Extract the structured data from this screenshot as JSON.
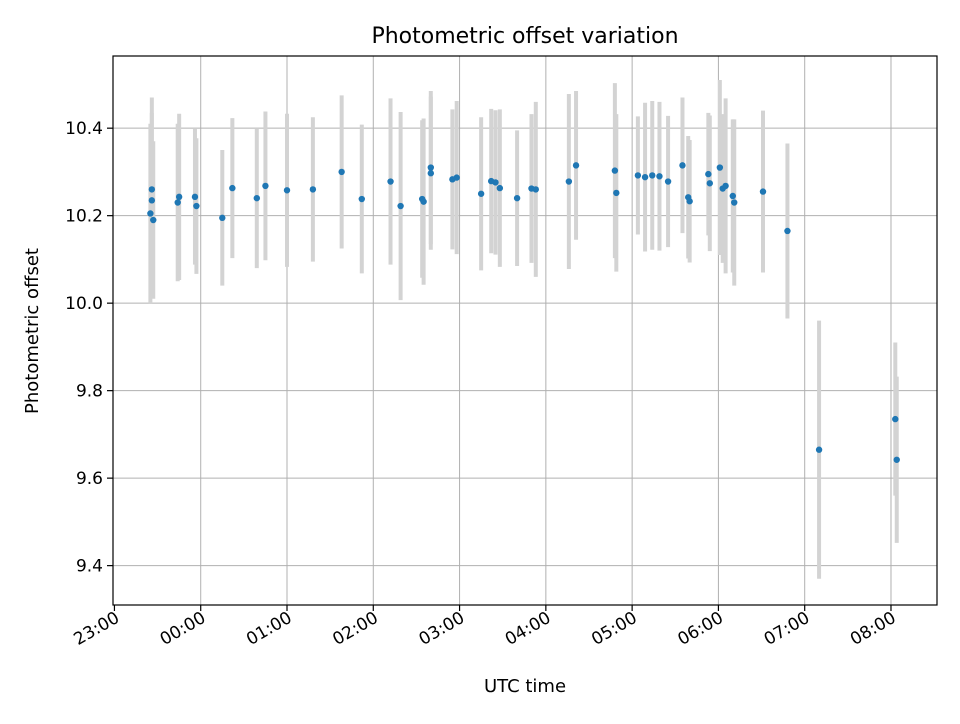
{
  "chart_data": {
    "type": "scatter",
    "title": "Photometric offset variation",
    "xlabel": "UTC time",
    "ylabel": "Photometric offset",
    "x_ticks": [
      "23:00",
      "00:00",
      "01:00",
      "02:00",
      "03:00",
      "04:00",
      "05:00",
      "06:00",
      "07:00",
      "08:00"
    ],
    "y_ticks": [
      "9.4",
      "9.6",
      "9.8",
      "10.0",
      "10.2",
      "10.4"
    ],
    "xlim": [
      "22:59",
      "08:32"
    ],
    "ylim": [
      9.31,
      10.565
    ],
    "grid": true,
    "colors": {
      "point": "#1f77b4",
      "errorbar": "#d3d3d3",
      "grid": "#b0b0b0"
    },
    "points": [
      {
        "t": "23:25",
        "y": 10.205,
        "err": 0.205
      },
      {
        "t": "23:26",
        "y": 10.26,
        "err": 0.21
      },
      {
        "t": "23:26",
        "y": 10.235,
        "err": 0.2
      },
      {
        "t": "23:27",
        "y": 10.19,
        "err": 0.18
      },
      {
        "t": "23:44",
        "y": 10.23,
        "err": 0.18
      },
      {
        "t": "23:45",
        "y": 10.243,
        "err": 0.19
      },
      {
        "t": "23:56",
        "y": 10.243,
        "err": 0.155
      },
      {
        "t": "23:57",
        "y": 10.222,
        "err": 0.155
      },
      {
        "t": "00:15",
        "y": 10.195,
        "err": 0.155
      },
      {
        "t": "00:22",
        "y": 10.263,
        "err": 0.16
      },
      {
        "t": "00:39",
        "y": 10.24,
        "err": 0.16
      },
      {
        "t": "00:45",
        "y": 10.268,
        "err": 0.17
      },
      {
        "t": "01:00",
        "y": 10.258,
        "err": 0.175
      },
      {
        "t": "01:18",
        "y": 10.26,
        "err": 0.165
      },
      {
        "t": "01:38",
        "y": 10.3,
        "err": 0.175
      },
      {
        "t": "01:52",
        "y": 10.238,
        "err": 0.17
      },
      {
        "t": "02:12",
        "y": 10.278,
        "err": 0.19
      },
      {
        "t": "02:19",
        "y": 10.222,
        "err": 0.215
      },
      {
        "t": "02:34",
        "y": 10.238,
        "err": 0.18
      },
      {
        "t": "02:35",
        "y": 10.232,
        "err": 0.19
      },
      {
        "t": "02:40",
        "y": 10.31,
        "err": 0.175
      },
      {
        "t": "02:40",
        "y": 10.297,
        "err": 0.175
      },
      {
        "t": "02:55",
        "y": 10.283,
        "err": 0.16
      },
      {
        "t": "02:58",
        "y": 10.287,
        "err": 0.175
      },
      {
        "t": "03:15",
        "y": 10.25,
        "err": 0.175
      },
      {
        "t": "03:22",
        "y": 10.279,
        "err": 0.165
      },
      {
        "t": "03:25",
        "y": 10.276,
        "err": 0.165
      },
      {
        "t": "03:28",
        "y": 10.263,
        "err": 0.18
      },
      {
        "t": "03:40",
        "y": 10.24,
        "err": 0.155
      },
      {
        "t": "03:50",
        "y": 10.262,
        "err": 0.17
      },
      {
        "t": "03:53",
        "y": 10.26,
        "err": 0.2
      },
      {
        "t": "04:16",
        "y": 10.278,
        "err": 0.2
      },
      {
        "t": "04:21",
        "y": 10.315,
        "err": 0.17
      },
      {
        "t": "04:48",
        "y": 10.303,
        "err": 0.2
      },
      {
        "t": "04:49",
        "y": 10.252,
        "err": 0.18
      },
      {
        "t": "05:04",
        "y": 10.292,
        "err": 0.135
      },
      {
        "t": "05:09",
        "y": 10.288,
        "err": 0.17
      },
      {
        "t": "05:14",
        "y": 10.292,
        "err": 0.17
      },
      {
        "t": "05:19",
        "y": 10.29,
        "err": 0.17
      },
      {
        "t": "05:25",
        "y": 10.278,
        "err": 0.15
      },
      {
        "t": "05:35",
        "y": 10.315,
        "err": 0.155
      },
      {
        "t": "05:39",
        "y": 10.242,
        "err": 0.14
      },
      {
        "t": "05:40",
        "y": 10.233,
        "err": 0.14
      },
      {
        "t": "05:53",
        "y": 10.295,
        "err": 0.14
      },
      {
        "t": "05:54",
        "y": 10.274,
        "err": 0.155
      },
      {
        "t": "06:01",
        "y": 10.31,
        "err": 0.2
      },
      {
        "t": "06:03",
        "y": 10.262,
        "err": 0.17
      },
      {
        "t": "06:05",
        "y": 10.268,
        "err": 0.2
      },
      {
        "t": "06:10",
        "y": 10.245,
        "err": 0.175
      },
      {
        "t": "06:11",
        "y": 10.23,
        "err": 0.19
      },
      {
        "t": "06:31",
        "y": 10.255,
        "err": 0.185
      },
      {
        "t": "06:48",
        "y": 10.165,
        "err": 0.2
      },
      {
        "t": "07:10",
        "y": 9.665,
        "err": 0.295
      },
      {
        "t": "08:03",
        "y": 9.735,
        "err": 0.175
      },
      {
        "t": "08:04",
        "y": 9.642,
        "err": 0.19
      }
    ]
  }
}
